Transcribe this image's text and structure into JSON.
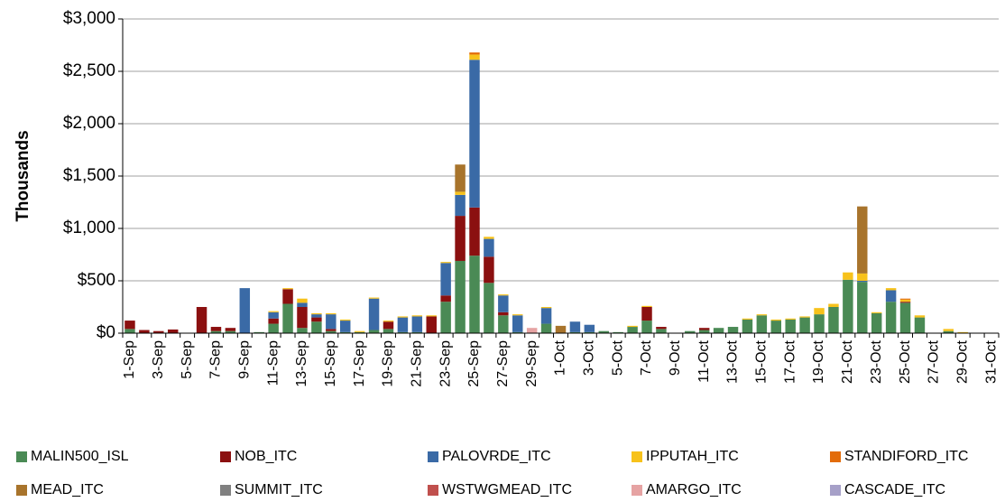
{
  "chart_data": {
    "type": "stacked_bar",
    "y_label": "Thousands",
    "categories": [
      "1-Sep",
      null,
      "3-Sep",
      null,
      "5-Sep",
      null,
      "7-Sep",
      null,
      "9-Sep",
      null,
      "11-Sep",
      null,
      "13-Sep",
      null,
      "15-Sep",
      null,
      "17-Sep",
      null,
      "19-Sep",
      null,
      "21-Sep",
      null,
      "23-Sep",
      null,
      "25-Sep",
      null,
      "27-Sep",
      null,
      "29-Sep",
      null,
      "1-Oct",
      null,
      "3-Oct",
      null,
      "5-Oct",
      null,
      "7-Oct",
      null,
      "9-Oct",
      null,
      "11-Oct",
      null,
      "13-Oct",
      null,
      "15-Oct",
      null,
      "17-Oct",
      null,
      "19-Oct",
      null,
      "21-Oct",
      null,
      "23-Oct",
      null,
      "25-Oct",
      null,
      "27-Oct",
      null,
      "29-Oct",
      null,
      "31-Oct"
    ],
    "series": [
      {
        "name": "MALIN500_ISL",
        "color": "#4a8a55",
        "values": [
          40,
          0,
          0,
          0,
          0,
          0,
          20,
          20,
          0,
          10,
          90,
          280,
          50,
          110,
          20,
          10,
          10,
          30,
          40,
          10,
          10,
          0,
          300,
          690,
          740,
          480,
          170,
          10,
          0,
          90,
          0,
          10,
          10,
          20,
          10,
          60,
          120,
          40,
          0,
          20,
          30,
          50,
          60,
          130,
          170,
          120,
          130,
          150,
          180,
          250,
          510,
          490,
          190,
          300,
          290,
          150,
          0,
          20,
          0,
          0,
          0
        ]
      },
      {
        "name": "NOB_ITC",
        "color": "#8b1010",
        "values": [
          80,
          30,
          20,
          35,
          0,
          250,
          40,
          30,
          0,
          0,
          50,
          140,
          200,
          40,
          20,
          0,
          0,
          0,
          70,
          0,
          0,
          160,
          60,
          430,
          460,
          250,
          30,
          0,
          0,
          0,
          0,
          0,
          0,
          0,
          0,
          0,
          130,
          20,
          0,
          0,
          20,
          0,
          0,
          0,
          0,
          0,
          0,
          0,
          0,
          0,
          0,
          0,
          0,
          0,
          10,
          0,
          0,
          0,
          0,
          0,
          0
        ]
      },
      {
        "name": "PALOVRDE_ITC",
        "color": "#3a6aa6",
        "values": [
          0,
          0,
          0,
          0,
          0,
          0,
          0,
          0,
          430,
          0,
          60,
          0,
          40,
          30,
          140,
          110,
          0,
          300,
          0,
          140,
          150,
          0,
          310,
          200,
          1410,
          170,
          160,
          160,
          0,
          150,
          0,
          100,
          70,
          0,
          0,
          0,
          0,
          0,
          0,
          0,
          0,
          0,
          0,
          0,
          0,
          0,
          0,
          0,
          0,
          0,
          0,
          10,
          0,
          110,
          0,
          0,
          0,
          0,
          0,
          0,
          0
        ]
      },
      {
        "name": "IPPUTAH_ITC",
        "color": "#f7c21b",
        "values": [
          0,
          0,
          0,
          0,
          0,
          0,
          0,
          0,
          0,
          0,
          10,
          10,
          40,
          10,
          10,
          10,
          10,
          10,
          10,
          10,
          10,
          10,
          10,
          30,
          50,
          20,
          10,
          10,
          0,
          10,
          0,
          0,
          0,
          0,
          0,
          10,
          10,
          0,
          0,
          0,
          0,
          0,
          0,
          10,
          10,
          10,
          10,
          10,
          60,
          30,
          70,
          70,
          10,
          20,
          20,
          20,
          0,
          20,
          10,
          0,
          0
        ]
      },
      {
        "name": "STANDIFORD_ITC",
        "color": "#e36c0a",
        "values": [
          0,
          0,
          0,
          0,
          0,
          0,
          0,
          0,
          0,
          0,
          0,
          0,
          0,
          0,
          0,
          0,
          0,
          0,
          0,
          0,
          0,
          0,
          0,
          0,
          20,
          0,
          0,
          0,
          0,
          0,
          0,
          0,
          0,
          0,
          0,
          0,
          0,
          0,
          0,
          0,
          0,
          0,
          0,
          0,
          0,
          0,
          0,
          0,
          0,
          0,
          0,
          0,
          0,
          0,
          10,
          0,
          0,
          0,
          0,
          0,
          0
        ]
      },
      {
        "name": "MEAD_ITC",
        "color": "#a8742c",
        "values": [
          0,
          0,
          0,
          0,
          0,
          0,
          0,
          0,
          0,
          0,
          0,
          0,
          0,
          0,
          0,
          0,
          0,
          0,
          0,
          0,
          0,
          0,
          0,
          260,
          0,
          0,
          0,
          0,
          0,
          0,
          70,
          0,
          0,
          0,
          0,
          0,
          0,
          0,
          0,
          0,
          0,
          0,
          0,
          0,
          0,
          0,
          0,
          0,
          0,
          0,
          0,
          640,
          0,
          0,
          0,
          0,
          0,
          0,
          0,
          0,
          0
        ]
      },
      {
        "name": "SUMMIT_ITC",
        "color": "#808080",
        "values": [
          0,
          0,
          0,
          0,
          0,
          0,
          0,
          0,
          0,
          0,
          0,
          0,
          0,
          0,
          0,
          0,
          0,
          0,
          0,
          0,
          0,
          0,
          0,
          0,
          0,
          0,
          0,
          0,
          0,
          0,
          0,
          0,
          0,
          0,
          0,
          0,
          0,
          0,
          0,
          0,
          0,
          0,
          0,
          0,
          0,
          0,
          0,
          0,
          0,
          0,
          0,
          0,
          0,
          0,
          0,
          0,
          0,
          0,
          0,
          0,
          0
        ]
      },
      {
        "name": "WSTWGMEAD_ITC",
        "color": "#c0504d",
        "values": [
          0,
          0,
          0,
          0,
          0,
          0,
          0,
          0,
          0,
          0,
          0,
          0,
          0,
          0,
          0,
          0,
          0,
          0,
          0,
          0,
          0,
          0,
          0,
          0,
          0,
          0,
          0,
          0,
          0,
          0,
          0,
          0,
          0,
          0,
          0,
          0,
          0,
          0,
          0,
          0,
          0,
          0,
          0,
          0,
          0,
          0,
          0,
          0,
          0,
          0,
          0,
          0,
          0,
          0,
          0,
          0,
          0,
          0,
          0,
          0,
          0
        ]
      },
      {
        "name": "AMARGO_ITC",
        "color": "#e6a3a3",
        "values": [
          0,
          0,
          0,
          0,
          0,
          0,
          0,
          0,
          0,
          0,
          0,
          0,
          0,
          0,
          0,
          0,
          0,
          0,
          0,
          0,
          0,
          0,
          0,
          0,
          0,
          0,
          0,
          0,
          50,
          0,
          0,
          0,
          0,
          0,
          0,
          0,
          0,
          0,
          0,
          0,
          0,
          0,
          0,
          0,
          0,
          0,
          0,
          0,
          0,
          0,
          0,
          0,
          0,
          0,
          0,
          0,
          0,
          0,
          0,
          0,
          0
        ]
      },
      {
        "name": "CASCADE_ITC",
        "color": "#a6a0c8",
        "values": [
          0,
          0,
          0,
          0,
          0,
          0,
          0,
          0,
          0,
          0,
          0,
          0,
          0,
          0,
          0,
          0,
          0,
          0,
          0,
          0,
          0,
          0,
          0,
          0,
          0,
          0,
          0,
          0,
          0,
          0,
          0,
          0,
          0,
          0,
          0,
          0,
          0,
          0,
          0,
          0,
          0,
          0,
          0,
          0,
          0,
          0,
          0,
          0,
          0,
          0,
          0,
          0,
          0,
          0,
          0,
          0,
          0,
          0,
          0,
          0,
          0
        ]
      }
    ],
    "ylim": [
      0,
      3000
    ],
    "yticks": [
      {
        "value": 0,
        "label": "$0"
      },
      {
        "value": 500,
        "label": "$500"
      },
      {
        "value": 1000,
        "label": "$1,000"
      },
      {
        "value": 1500,
        "label": "$1,500"
      },
      {
        "value": 2000,
        "label": "$2,000"
      },
      {
        "value": 2500,
        "label": "$2,500"
      },
      {
        "value": 3000,
        "label": "$3,000"
      }
    ],
    "grid": true,
    "legend": "bottom"
  }
}
